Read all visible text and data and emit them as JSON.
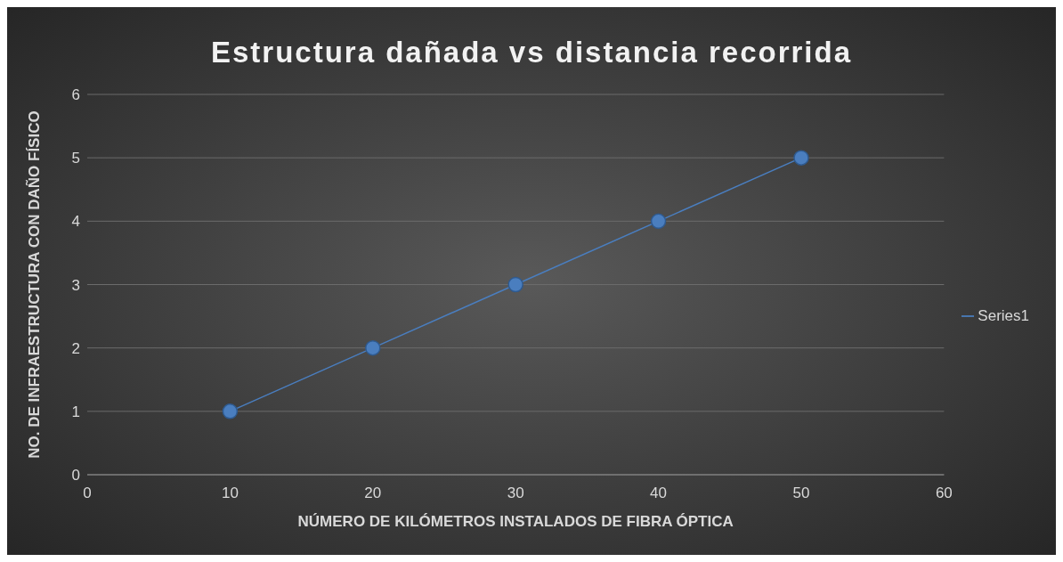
{
  "chart_data": {
    "type": "line",
    "title": "Estructura dañada vs distancia recorrida",
    "xlabel": "NÚMERO DE KILÓMETROS INSTALADOS DE FIBRA ÓPTICA",
    "ylabel": "NO. DE INFRAESTRUCTURA CON DAÑO FÍSICO",
    "x": [
      10,
      20,
      30,
      40,
      50
    ],
    "series": [
      {
        "name": "Series1",
        "color": "#4a7ebf",
        "values": [
          1,
          2,
          3,
          4,
          5
        ]
      }
    ],
    "xlim": [
      0,
      60
    ],
    "xticks": [
      0,
      10,
      20,
      30,
      40,
      50,
      60
    ],
    "ylim": [
      0,
      6
    ],
    "yticks": [
      0,
      1,
      2,
      3,
      4,
      5,
      6
    ],
    "grid": "y",
    "legend": "right",
    "marker": "circle",
    "line_style": "solid"
  }
}
